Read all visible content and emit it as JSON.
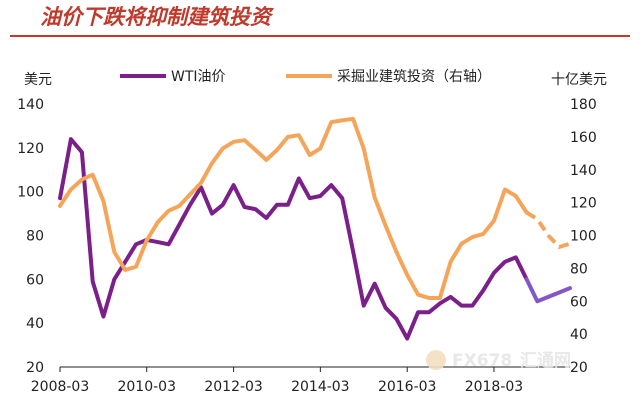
{
  "chart_data": {
    "type": "line",
    "title": "油价下跌将抑制建筑投资",
    "left_unit": "美元",
    "right_unit": "十亿美元",
    "x_ticks": [
      "2008-03",
      "2010-03",
      "2012-03",
      "2014-03",
      "2016-03",
      "2018-03"
    ],
    "y_left": {
      "min": 20,
      "max": 140,
      "ticks": [
        20,
        40,
        60,
        80,
        100,
        120,
        140
      ]
    },
    "y_right": {
      "min": 20,
      "max": 180,
      "ticks": [
        20,
        40,
        60,
        80,
        100,
        120,
        140,
        160,
        180
      ]
    },
    "legend_position": "top",
    "series": [
      {
        "name": "WTI油价",
        "axis": "left",
        "color": "#7b1f8a",
        "x": [
          "2008-03",
          "2008-06",
          "2008-09",
          "2008-12",
          "2009-03",
          "2009-06",
          "2009-09",
          "2009-12",
          "2010-03",
          "2010-06",
          "2010-09",
          "2010-12",
          "2011-03",
          "2011-06",
          "2011-09",
          "2011-12",
          "2012-03",
          "2012-06",
          "2012-09",
          "2012-12",
          "2013-03",
          "2013-06",
          "2013-09",
          "2013-12",
          "2014-03",
          "2014-06",
          "2014-09",
          "2014-12",
          "2015-03",
          "2015-06",
          "2015-09",
          "2015-12",
          "2016-03",
          "2016-06",
          "2016-09",
          "2016-12",
          "2017-03",
          "2017-06",
          "2017-09",
          "2017-12",
          "2018-03",
          "2018-06",
          "2018-09",
          "2018-12"
        ],
        "values": [
          97,
          124,
          118,
          59,
          43,
          60,
          68,
          76,
          78,
          77,
          76,
          85,
          94,
          102,
          90,
          94,
          103,
          93,
          92,
          88,
          94,
          94,
          106,
          97,
          98,
          103,
          97,
          73,
          48,
          58,
          47,
          42,
          33,
          45,
          45,
          49,
          52,
          48,
          48,
          55,
          63,
          68,
          70,
          60
        ]
      },
      {
        "name": "WTI油价",
        "axis": "left",
        "role": "forecast",
        "style": "solid-light",
        "color": "#8457c9",
        "x": [
          "2018-12",
          "2019-03",
          "2019-06",
          "2019-09",
          "2019-12"
        ],
        "values": [
          60,
          50,
          52,
          54,
          56
        ]
      },
      {
        "name": "采掘业建筑投资（右轴）",
        "axis": "right",
        "color": "#f5a55a",
        "x": [
          "2008-03",
          "2008-06",
          "2008-09",
          "2008-12",
          "2009-03",
          "2009-06",
          "2009-09",
          "2009-12",
          "2010-03",
          "2010-06",
          "2010-09",
          "2010-12",
          "2011-03",
          "2011-06",
          "2011-09",
          "2011-12",
          "2012-03",
          "2012-06",
          "2012-09",
          "2012-12",
          "2013-03",
          "2013-06",
          "2013-09",
          "2013-12",
          "2014-03",
          "2014-06",
          "2014-09",
          "2014-12",
          "2015-03",
          "2015-06",
          "2015-09",
          "2015-12",
          "2016-03",
          "2016-06",
          "2016-09",
          "2016-12",
          "2017-03",
          "2017-06",
          "2017-09",
          "2017-12",
          "2018-03",
          "2018-06",
          "2018-09",
          "2018-12"
        ],
        "values": [
          118,
          128,
          134,
          137,
          121,
          90,
          79,
          81,
          97,
          108,
          115,
          118,
          125,
          132,
          144,
          153,
          157,
          158,
          152,
          146,
          152,
          160,
          161,
          149,
          153,
          169,
          170,
          171,
          153,
          123,
          106,
          90,
          76,
          64,
          62,
          62,
          84,
          95,
          99,
          101,
          109,
          128,
          124,
          114
        ]
      },
      {
        "name": "采掘业建筑投资（右轴）",
        "axis": "right",
        "role": "forecast",
        "style": "dashed",
        "color": "#f5a55a",
        "x": [
          "2018-12",
          "2019-03",
          "2019-06",
          "2019-09",
          "2019-12"
        ],
        "values": [
          114,
          110,
          100,
          93,
          95
        ]
      }
    ]
  },
  "watermark": {
    "brand": "FX678",
    "brand_cn": "汇通网"
  }
}
